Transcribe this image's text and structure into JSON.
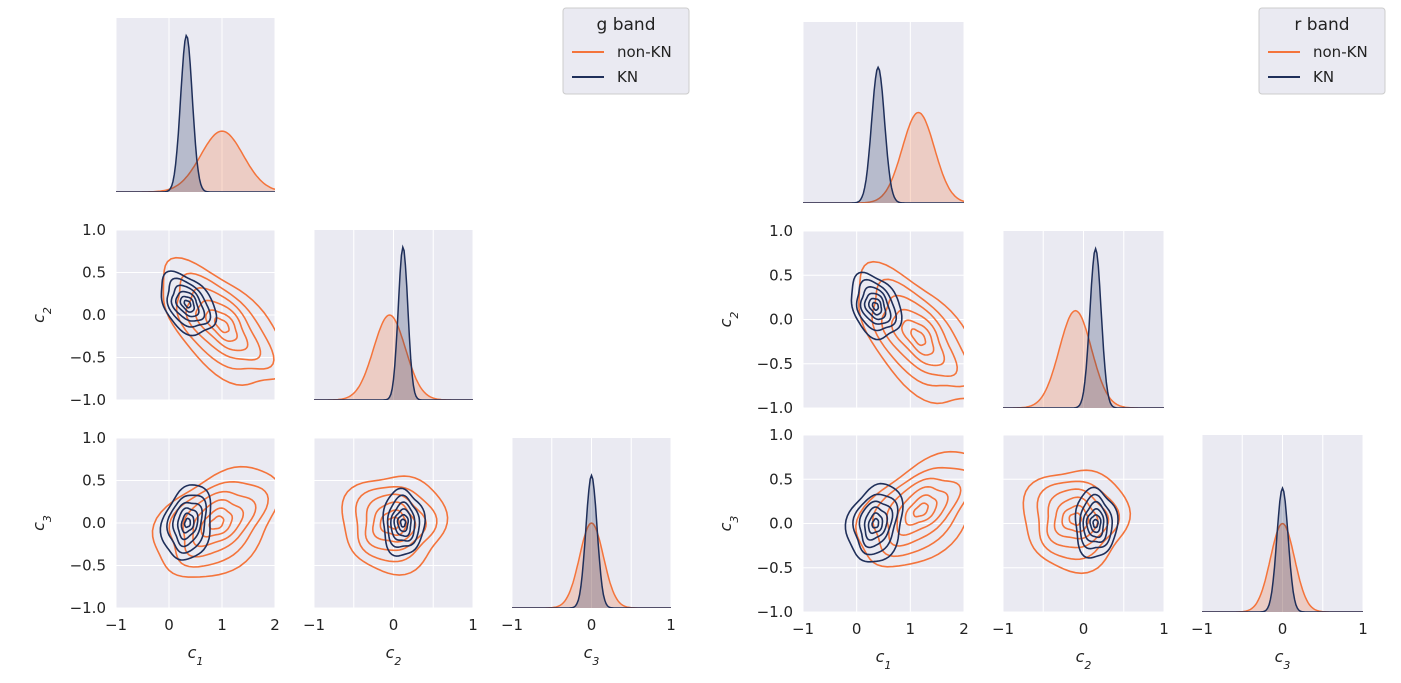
{
  "figures": [
    {
      "legend": {
        "title": "g band",
        "entries": [
          {
            "label": "non-KN",
            "color": "#f4743b"
          },
          {
            "label": "KN",
            "color": "#1f2f5a"
          }
        ]
      },
      "xlabels": [
        "c1",
        "c2",
        "c3"
      ],
      "ylabels": [
        "c2",
        "c3"
      ]
    },
    {
      "legend": {
        "title": "r band",
        "entries": [
          {
            "label": "non-KN",
            "color": "#f4743b"
          },
          {
            "label": "KN",
            "color": "#1f2f5a"
          }
        ]
      },
      "xlabels": [
        "c1",
        "c2",
        "c3"
      ],
      "ylabels": [
        "c2",
        "c3"
      ]
    }
  ],
  "colors": {
    "panel_bg": "#eaeaf2",
    "grid": "#ffffff",
    "non_kn": "#f4743b",
    "kn": "#1f2f5a"
  },
  "chart_data": [
    {
      "type": "pairplot-kde",
      "band": "g band",
      "variables": [
        "c1",
        "c2",
        "c3"
      ],
      "axis_ranges": {
        "c1": [
          -1,
          2
        ],
        "c2": [
          -1,
          1
        ],
        "c3": [
          -1,
          1
        ]
      },
      "ticks": {
        "c1": [
          -1,
          0,
          1,
          2
        ],
        "c2": [
          -1.0,
          -0.5,
          0.0,
          0.5,
          1.0
        ],
        "c3": [
          -1.0,
          -0.5,
          0.0,
          0.5,
          1.0
        ]
      },
      "grid": true,
      "legend_placement": "top-right",
      "series": [
        {
          "name": "non-KN",
          "color": "#f4743b",
          "marginals": {
            "c1": {
              "peak": 1.0,
              "sd": 0.4,
              "height": 0.35
            },
            "c2": {
              "peak": -0.05,
              "sd": 0.2,
              "height": 0.5
            },
            "c3": {
              "peak": 0.0,
              "sd": 0.15,
              "height": 0.5
            }
          },
          "joint": {
            "c1_c2": {
              "center": [
                1.0,
                -0.12
              ],
              "sd": [
                0.45,
                0.28
              ],
              "rho": -0.6
            },
            "c1_c3": {
              "center": [
                0.9,
                0.0
              ],
              "sd": [
                0.45,
                0.25
              ],
              "rho": 0.4
            },
            "c2_c3": {
              "center": [
                0.0,
                0.0
              ],
              "sd": [
                0.25,
                0.22
              ],
              "rho": 0.0
            }
          }
        },
        {
          "name": "KN",
          "color": "#1f2f5a",
          "marginals": {
            "c1": {
              "peak": 0.33,
              "sd": 0.11,
              "height": 0.9
            },
            "c2": {
              "peak": 0.12,
              "sd": 0.06,
              "height": 0.9
            },
            "c3": {
              "peak": 0.0,
              "sd": 0.07,
              "height": 0.78
            }
          },
          "joint": {
            "c1_c2": {
              "center": [
                0.35,
                0.13
              ],
              "sd": [
                0.2,
                0.14
              ],
              "rho": -0.4
            },
            "c1_c3": {
              "center": [
                0.35,
                0.0
              ],
              "sd": [
                0.18,
                0.17
              ],
              "rho": 0.2
            },
            "c2_c3": {
              "center": [
                0.12,
                0.0
              ],
              "sd": [
                0.1,
                0.15
              ],
              "rho": 0.0
            }
          }
        }
      ]
    },
    {
      "type": "pairplot-kde",
      "band": "r band",
      "variables": [
        "c1",
        "c2",
        "c3"
      ],
      "axis_ranges": {
        "c1": [
          -1,
          2
        ],
        "c2": [
          -1,
          1
        ],
        "c3": [
          -1,
          1
        ]
      },
      "ticks": {
        "c1": [
          -1,
          0,
          1,
          2
        ],
        "c2": [
          -1.0,
          -0.5,
          0.0,
          0.5,
          1.0
        ],
        "c3": [
          -1.0,
          -0.5,
          0.0,
          0.5,
          1.0
        ]
      },
      "grid": true,
      "legend_placement": "top-right",
      "series": [
        {
          "name": "non-KN",
          "color": "#f4743b",
          "marginals": {
            "c1": {
              "peak": 1.15,
              "sd": 0.3,
              "height": 0.5
            },
            "c2": {
              "peak": -0.1,
              "sd": 0.2,
              "height": 0.55
            },
            "c3": {
              "peak": 0.0,
              "sd": 0.15,
              "height": 0.5
            }
          },
          "joint": {
            "c1_c2": {
              "center": [
                1.15,
                -0.2
              ],
              "sd": [
                0.45,
                0.3
              ],
              "rho": -0.6
            },
            "c1_c3": {
              "center": [
                1.2,
                0.15
              ],
              "sd": [
                0.45,
                0.25
              ],
              "rho": 0.5
            },
            "c2_c3": {
              "center": [
                -0.1,
                0.05
              ],
              "sd": [
                0.25,
                0.22
              ],
              "rho": 0.0
            }
          }
        },
        {
          "name": "KN",
          "color": "#1f2f5a",
          "marginals": {
            "c1": {
              "peak": 0.4,
              "sd": 0.12,
              "height": 0.75
            },
            "c2": {
              "peak": 0.15,
              "sd": 0.07,
              "height": 0.9
            },
            "c3": {
              "peak": 0.0,
              "sd": 0.07,
              "height": 0.7
            }
          },
          "joint": {
            "c1_c2": {
              "center": [
                0.35,
                0.15
              ],
              "sd": [
                0.18,
                0.14
              ],
              "rho": -0.3
            },
            "c1_c3": {
              "center": [
                0.35,
                0.0
              ],
              "sd": [
                0.2,
                0.17
              ],
              "rho": 0.2
            },
            "c2_c3": {
              "center": [
                0.15,
                0.0
              ],
              "sd": [
                0.1,
                0.15
              ],
              "rho": 0.0
            }
          }
        }
      ]
    }
  ]
}
